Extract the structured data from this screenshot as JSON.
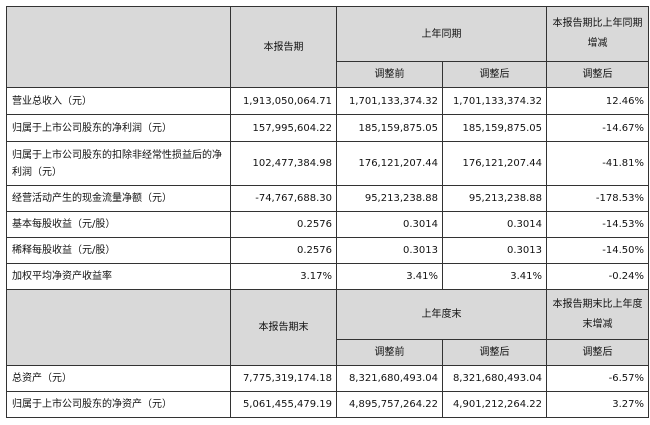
{
  "section1": {
    "header": {
      "current": "本报告期",
      "prior_year": "上年同期",
      "change": "本报告期比上年同期增减",
      "before_adjust": "调整前",
      "after_adjust": "调整后",
      "change_after": "调整后"
    },
    "rows": [
      {
        "label": "营业总收入（元）",
        "current": "1,913,050,064.71",
        "before": "1,701,133,374.32",
        "after": "1,701,133,374.32",
        "change": "12.46%"
      },
      {
        "label": "归属于上市公司股东的净利润（元）",
        "current": "157,995,604.22",
        "before": "185,159,875.05",
        "after": "185,159,875.05",
        "change": "-14.67%"
      },
      {
        "label": "归属于上市公司股东的扣除非经常性损益后的净利润（元）",
        "current": "102,477,384.98",
        "before": "176,121,207.44",
        "after": "176,121,207.44",
        "change": "-41.81%"
      },
      {
        "label": "经营活动产生的现金流量净额（元）",
        "current": "-74,767,688.30",
        "before": "95,213,238.88",
        "after": "95,213,238.88",
        "change": "-178.53%"
      },
      {
        "label": "基本每股收益（元/股）",
        "current": "0.2576",
        "before": "0.3014",
        "after": "0.3014",
        "change": "-14.53%"
      },
      {
        "label": "稀释每股收益（元/股）",
        "current": "0.2576",
        "before": "0.3013",
        "after": "0.3013",
        "change": "-14.50%"
      },
      {
        "label": "加权平均净资产收益率",
        "current": "3.17%",
        "before": "3.41%",
        "after": "3.41%",
        "change": "-0.24%"
      }
    ]
  },
  "section2": {
    "header": {
      "current": "本报告期末",
      "prior_year": "上年度末",
      "change": "本报告期末比上年度末增减",
      "before_adjust": "调整前",
      "after_adjust": "调整后",
      "change_after": "调整后"
    },
    "rows": [
      {
        "label": "总资产（元）",
        "current": "7,775,319,174.18",
        "before": "8,321,680,493.04",
        "after": "8,321,680,493.04",
        "change": "-6.57%"
      },
      {
        "label": "归属于上市公司股东的净资产（元）",
        "current": "5,061,455,479.19",
        "before": "4,895,757,264.22",
        "after": "4,901,212,264.22",
        "change": "3.27%"
      }
    ]
  }
}
